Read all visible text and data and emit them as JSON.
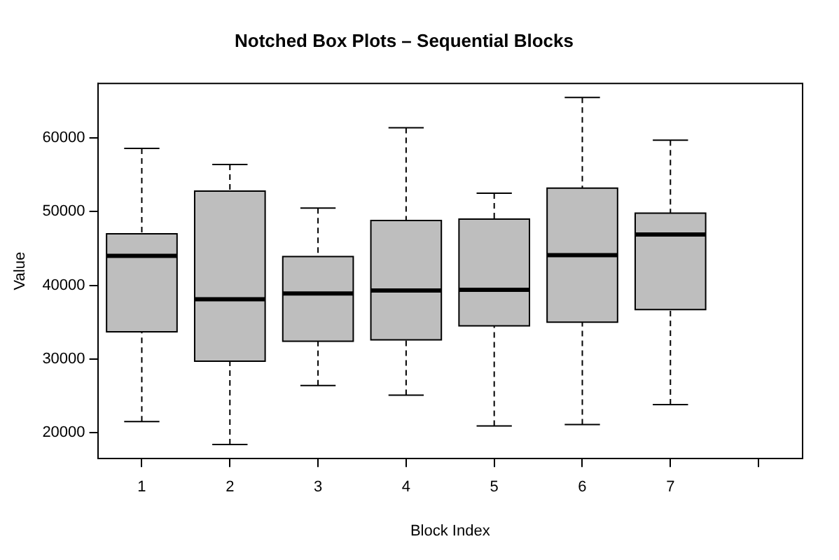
{
  "chart_data": {
    "type": "box",
    "title": "Notched Box Plots – Sequential Blocks",
    "xlabel": "Block Index",
    "ylabel": "Value",
    "categories": [
      "1",
      "2",
      "3",
      "4",
      "5",
      "6",
      "7",
      null
    ],
    "color": "#bebebe",
    "boxes": [
      {
        "low": 21500,
        "q1": 33700,
        "median": 44000,
        "q3": 47000,
        "high": 58600
      },
      {
        "low": 18400,
        "q1": 29700,
        "median": 38100,
        "q3": 52800,
        "high": 56400
      },
      {
        "low": 26400,
        "q1": 32400,
        "median": 38900,
        "q3": 43900,
        "high": 50500
      },
      {
        "low": 25100,
        "q1": 32600,
        "median": 39300,
        "q3": 48800,
        "high": 61400
      },
      {
        "low": 20900,
        "q1": 34500,
        "median": 39400,
        "q3": 49000,
        "high": 52500
      },
      {
        "low": 21100,
        "q1": 35000,
        "median": 44100,
        "q3": 53200,
        "high": 65500
      },
      {
        "low": 23800,
        "q1": 36700,
        "median": 46900,
        "q3": 49800,
        "high": 59700
      },
      null
    ],
    "ylim": [
      16470,
      67410
    ],
    "yticks": [
      20000,
      30000,
      40000,
      50000,
      60000
    ]
  }
}
